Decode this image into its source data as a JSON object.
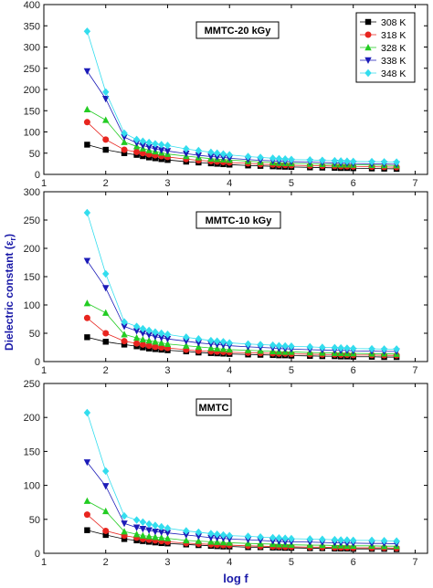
{
  "chart_data": {
    "type": "scatter",
    "x_axis_label": "log f",
    "y_axis_label": "Dielectric constant (ε",
    "y_axis_label_subscript": "r",
    "y_axis_label_close": ")",
    "x_ticks": [
      "1",
      "2",
      "3",
      "4",
      "5",
      "6",
      "7"
    ],
    "xlim": [
      1,
      7.2
    ],
    "x": [
      1.7,
      2.0,
      2.3,
      2.5,
      2.6,
      2.7,
      2.8,
      2.9,
      3.0,
      3.3,
      3.5,
      3.7,
      3.8,
      3.9,
      4.0,
      4.3,
      4.5,
      4.7,
      4.8,
      4.9,
      5.0,
      5.3,
      5.5,
      5.7,
      5.8,
      5.9,
      6.0,
      6.3,
      6.5,
      6.7
    ],
    "legend": {
      "placement": "top-right",
      "entries": [
        "308 K",
        "318 K",
        "328 K",
        "338 K",
        "348 K"
      ]
    },
    "series_styles": [
      {
        "name": "308 K",
        "color": "#000000",
        "marker": "square"
      },
      {
        "name": "318 K",
        "color": "#e8251f",
        "marker": "circle"
      },
      {
        "name": "328 K",
        "color": "#22cc22",
        "marker": "triangle-up"
      },
      {
        "name": "338 K",
        "color": "#1c1cb8",
        "marker": "triangle-down"
      },
      {
        "name": "348 K",
        "color": "#33ddee",
        "marker": "diamond"
      }
    ],
    "panels": [
      {
        "label": "MMTC-20 kGy",
        "ylim": [
          0,
          400
        ],
        "y_ticks": [
          "0",
          "50",
          "100",
          "150",
          "200",
          "250",
          "300",
          "350",
          "400"
        ],
        "series": [
          {
            "name": "308 K",
            "values": [
              70,
              58,
              50,
              46,
              43,
              40,
              38,
              36,
              34,
              30,
              28,
              26,
              25,
              24,
              23,
              21,
              20,
              19,
              18.5,
              18,
              17.5,
              16.5,
              16,
              15.5,
              15,
              15,
              14.5,
              14,
              13.5,
              13
            ]
          },
          {
            "name": "318 K",
            "values": [
              123,
              82,
              58,
              53,
              50,
              47,
              45,
              43,
              41,
              36,
              33,
              31,
              30,
              29,
              28,
              26,
              24,
              23,
              22.5,
              22,
              21.5,
              20.5,
              20,
              19.5,
              19,
              19,
              18.5,
              18,
              17.5,
              17
            ]
          },
          {
            "name": "328 K",
            "values": [
              153,
              128,
              76,
              66,
              61,
              57,
              54,
              51,
              48,
              43,
              40,
              37,
              36,
              35,
              34,
              31,
              29,
              28,
              27,
              26.5,
              26,
              25,
              24,
              23.5,
              23,
              23,
              22.5,
              22,
              21.5,
              21
            ]
          },
          {
            "name": "338 K",
            "values": [
              243,
              178,
              88,
              74,
              68,
              64,
              60,
              57,
              55,
              49,
              45,
              42,
              41,
              40,
              38,
              35,
              33,
              32,
              31,
              30.5,
              30,
              29,
              28,
              27,
              26.5,
              26,
              25.5,
              25,
              24.5,
              24
            ]
          },
          {
            "name": "348 K",
            "values": [
              337,
              194,
              97,
              82,
              78,
              75,
              72,
              70,
              68,
              60,
              56,
              52,
              50,
              48,
              46,
              42,
              40,
              38,
              37,
              36,
              35,
              34,
              33,
              32,
              31.5,
              31,
              30.5,
              30,
              29.5,
              29
            ]
          }
        ]
      },
      {
        "label": "MMTC-10 kGy",
        "ylim": [
          0,
          300
        ],
        "y_ticks": [
          "0",
          "50",
          "100",
          "150",
          "200",
          "250",
          "300"
        ],
        "series": [
          {
            "name": "308 K",
            "values": [
              43,
              35,
              30,
              27,
              25,
              23,
              22,
              21,
              20,
              18,
              16,
              15,
              14.5,
              14,
              13.5,
              12.5,
              12,
              11.5,
              11,
              11,
              10.5,
              10,
              9.5,
              9.5,
              9,
              9,
              8.5,
              8.5,
              8,
              8
            ]
          },
          {
            "name": "318 K",
            "values": [
              77,
              50,
              36,
              32,
              30,
              28,
              26,
              25,
              24,
              21,
              19,
              18,
              17.5,
              17,
              16.5,
              15.5,
              15,
              14.5,
              14,
              14,
              13.5,
              13,
              12.5,
              12.5,
              12,
              12,
              11.5,
              11.5,
              11,
              11
            ]
          },
          {
            "name": "328 K",
            "values": [
              103,
              86,
              48,
              42,
              39,
              37,
              35,
              33,
              31,
              28,
              26,
              24,
              23,
              22,
              21,
              20,
              19,
              18,
              17.5,
              17,
              17,
              16,
              15.5,
              15,
              15,
              14.5,
              14.5,
              14,
              14,
              13.5
            ]
          },
          {
            "name": "338 K",
            "values": [
              178,
              130,
              62,
              54,
              50,
              47,
              44,
              42,
              40,
              36,
              33,
              31,
              30,
              29,
              28,
              26,
              25,
              24,
              23,
              22.5,
              22,
              21,
              20.5,
              20,
              19.5,
              19.5,
              19,
              18.5,
              18,
              18
            ]
          },
          {
            "name": "348 K",
            "values": [
              263,
              155,
              70,
              62,
              58,
              55,
              52,
              50,
              48,
              43,
              40,
              37,
              36,
              35,
              33,
              31,
              30,
              29,
              28,
              27.5,
              27,
              26,
              25,
              24.5,
              24,
              23.5,
              23,
              22.5,
              22,
              22
            ]
          }
        ]
      },
      {
        "label": "MMTC",
        "ylim": [
          0,
          250
        ],
        "y_ticks": [
          "0",
          "50",
          "100",
          "150",
          "200",
          "250"
        ],
        "series": [
          {
            "name": "308 K",
            "values": [
              34,
              27,
              21,
              19,
              18,
              17,
              16,
              15,
              14.5,
              13,
              12,
              11,
              10.5,
              10,
              10,
              9,
              9,
              8.5,
              8.5,
              8,
              8,
              7.5,
              7.5,
              7,
              7,
              7,
              6.5,
              6.5,
              6.5,
              6
            ]
          },
          {
            "name": "318 K",
            "values": [
              57,
              33,
              26,
              23,
              21,
              20,
              19,
              18,
              17,
              15,
              14,
              13,
              12.5,
              12,
              12,
              11,
              10.5,
              10,
              10,
              9.5,
              9.5,
              9,
              9,
              8.5,
              8.5,
              8.5,
              8,
              8,
              8,
              7.5
            ]
          },
          {
            "name": "328 K",
            "values": [
              77,
              62,
              32,
              28,
              26,
              25,
              24,
              23,
              22,
              19,
              18,
              17,
              16.5,
              16,
              15.5,
              14.5,
              14,
              13.5,
              13,
              13,
              12.5,
              12,
              12,
              11.5,
              11.5,
              11,
              11,
              11,
              10.5,
              10.5
            ]
          },
          {
            "name": "338 K",
            "values": [
              134,
              99,
              44,
              38,
              36,
              34,
              32,
              31,
              30,
              27,
              25,
              23,
              22.5,
              22,
              21,
              20,
              19,
              18,
              17.5,
              17,
              17,
              16.5,
              16,
              15.5,
              15.5,
              15,
              15,
              14.5,
              14.5,
              14
            ]
          },
          {
            "name": "348 K",
            "values": [
              207,
              121,
              55,
              49,
              46,
              43,
              41,
              39,
              37,
              33,
              31,
              29,
              28,
              27,
              26,
              25,
              24,
              23,
              22.5,
              22,
              21.5,
              21,
              20.5,
              20,
              19.5,
              19.5,
              19,
              19,
              18.5,
              18
            ]
          }
        ]
      }
    ]
  }
}
